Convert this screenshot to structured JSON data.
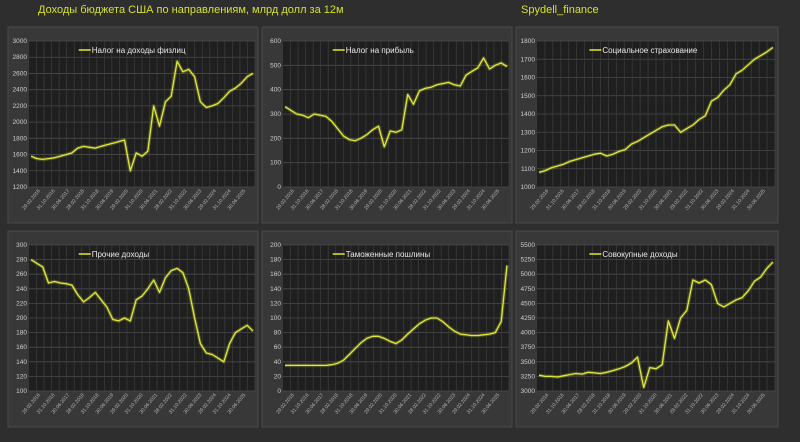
{
  "header": {
    "title": "Доходы бюджета США по направлениям, млрд долл за 12м",
    "source": "Spydell_finance"
  },
  "colors": {
    "line": "#dfe83a",
    "title": "#d6e033",
    "background": "#2e2e2e",
    "plot_background": "#1f1f1f"
  },
  "chart_data": [
    {
      "type": "line",
      "legend": "Налог на доходы физлиц",
      "ylim": [
        1200,
        3000
      ],
      "yticks": [
        1200,
        1400,
        1600,
        1800,
        2000,
        2200,
        2400,
        2600,
        2800,
        3000
      ],
      "grid": true,
      "legend_position": "top-center",
      "xticks": [
        "29.02.2016",
        "31.10.2016",
        "30.06.2017",
        "28.02.2018",
        "31.10.2018",
        "30.06.2019",
        "29.02.2020",
        "31.10.2020",
        "30.06.2021",
        "28.02.2022",
        "31.10.2022",
        "30.06.2023",
        "29.02.2024",
        "31.10.2024",
        "30.06.2025"
      ],
      "x_range": [
        "2016-01",
        "2025-07"
      ],
      "values": [
        1580,
        1550,
        1540,
        1550,
        1560,
        1580,
        1600,
        1620,
        1680,
        1700,
        1690,
        1680,
        1700,
        1720,
        1740,
        1760,
        1780,
        1400,
        1620,
        1580,
        1640,
        2200,
        1950,
        2250,
        2320,
        2750,
        2620,
        2650,
        2560,
        2250,
        2180,
        2200,
        2230,
        2300,
        2380,
        2420,
        2480,
        2560,
        2600
      ]
    },
    {
      "type": "line",
      "legend": "Налог на прибыль",
      "ylim": [
        0,
        600
      ],
      "yticks": [
        0,
        100,
        200,
        300,
        400,
        500,
        600
      ],
      "grid": true,
      "legend_position": "top-center",
      "xticks": [
        "29.02.2016",
        "31.10.2016",
        "30.06.2017",
        "28.02.2018",
        "31.10.2018",
        "30.06.2019",
        "29.02.2020",
        "31.10.2020",
        "30.06.2021",
        "28.02.2022",
        "31.10.2022",
        "30.06.2023",
        "29.02.2024",
        "31.10.2024",
        "30.06.2025"
      ],
      "x_range": [
        "2016-01",
        "2025-07"
      ],
      "values": [
        330,
        315,
        300,
        295,
        285,
        300,
        295,
        290,
        270,
        240,
        210,
        195,
        190,
        200,
        215,
        235,
        250,
        165,
        230,
        225,
        235,
        380,
        340,
        395,
        405,
        410,
        420,
        425,
        430,
        420,
        415,
        460,
        475,
        490,
        530,
        485,
        500,
        510,
        495
      ]
    },
    {
      "type": "line",
      "legend": "Социальное страхование",
      "ylim": [
        1000,
        1800
      ],
      "yticks": [
        1000,
        1100,
        1200,
        1300,
        1400,
        1500,
        1600,
        1700,
        1800
      ],
      "grid": true,
      "legend_position": "top-center",
      "xticks": [
        "29.02.2016",
        "31.10.2016",
        "30.06.2017",
        "28.02.2018",
        "31.10.2018",
        "30.06.2019",
        "29.02.2020",
        "31.10.2020",
        "30.06.2021",
        "28.02.2022",
        "31.10.2022",
        "30.06.2023",
        "29.02.2024",
        "31.10.2024",
        "30.06.2025"
      ],
      "x_range": [
        "2016-01",
        "2025-07"
      ],
      "values": [
        1080,
        1090,
        1105,
        1115,
        1125,
        1140,
        1150,
        1160,
        1170,
        1180,
        1185,
        1170,
        1180,
        1195,
        1205,
        1235,
        1250,
        1270,
        1290,
        1310,
        1330,
        1340,
        1340,
        1300,
        1320,
        1340,
        1370,
        1390,
        1470,
        1490,
        1530,
        1560,
        1620,
        1640,
        1670,
        1700,
        1720,
        1740,
        1765
      ]
    },
    {
      "type": "line",
      "legend": "Прочие доходы",
      "ylim": [
        100,
        300
      ],
      "yticks": [
        100,
        120,
        140,
        160,
        180,
        200,
        220,
        240,
        260,
        280,
        300
      ],
      "grid": true,
      "legend_position": "top-center",
      "xticks": [
        "29.02.2016",
        "31.10.2016",
        "30.06.2017",
        "28.02.2018",
        "31.10.2018",
        "30.06.2019",
        "29.02.2020",
        "31.10.2020",
        "30.06.2021",
        "28.02.2022",
        "31.10.2022",
        "30.06.2023",
        "29.02.2024",
        "31.10.2024",
        "30.06.2025"
      ],
      "x_range": [
        "2016-01",
        "2025-07"
      ],
      "values": [
        280,
        275,
        270,
        248,
        250,
        248,
        247,
        245,
        232,
        222,
        228,
        235,
        225,
        215,
        198,
        196,
        200,
        196,
        225,
        230,
        240,
        252,
        235,
        255,
        265,
        268,
        262,
        240,
        200,
        165,
        152,
        150,
        145,
        140,
        165,
        180,
        185,
        190,
        182
      ]
    },
    {
      "type": "line",
      "legend": "Таможенные пошлины",
      "ylim": [
        0,
        200
      ],
      "yticks": [
        0,
        20,
        40,
        60,
        80,
        100,
        120,
        140,
        160,
        180,
        200
      ],
      "grid": true,
      "legend_position": "top-center",
      "xticks": [
        "29.02.2016",
        "31.10.2016",
        "30.06.2017",
        "28.02.2018",
        "31.10.2018",
        "30.06.2019",
        "29.02.2020",
        "31.10.2020",
        "30.06.2021",
        "28.02.2022",
        "31.10.2022",
        "30.06.2023",
        "29.02.2024",
        "31.10.2024",
        "30.06.2025"
      ],
      "x_range": [
        "2016-01",
        "2025-07"
      ],
      "values": [
        35,
        35,
        35,
        35,
        35,
        35,
        35,
        35,
        36,
        38,
        42,
        50,
        58,
        66,
        72,
        75,
        75,
        72,
        68,
        65,
        70,
        78,
        85,
        92,
        97,
        100,
        100,
        95,
        88,
        82,
        78,
        77,
        76,
        76,
        77,
        78,
        80,
        95,
        172
      ]
    },
    {
      "type": "line",
      "legend": "Совокупные доходы",
      "ylim": [
        3000,
        5500
      ],
      "yticks": [
        3000,
        3250,
        3500,
        3750,
        4000,
        4250,
        4500,
        4750,
        5000,
        5250,
        5500
      ],
      "grid": true,
      "legend_position": "top-center",
      "xticks": [
        "29.02.2016",
        "31.10.2016",
        "30.06.2017",
        "28.02.2018",
        "31.10.2018",
        "30.06.2019",
        "29.02.2020",
        "31.10.2020",
        "30.06.2021",
        "28.02.2022",
        "31.10.2022",
        "30.06.2023",
        "29.02.2024",
        "31.10.2024",
        "30.06.2025"
      ],
      "x_range": [
        "2016-01",
        "2025-07"
      ],
      "values": [
        3270,
        3250,
        3250,
        3240,
        3260,
        3280,
        3300,
        3290,
        3320,
        3310,
        3300,
        3320,
        3350,
        3380,
        3420,
        3480,
        3580,
        3060,
        3400,
        3380,
        3450,
        4200,
        3900,
        4250,
        4380,
        4900,
        4850,
        4900,
        4820,
        4500,
        4440,
        4500,
        4560,
        4600,
        4720,
        4880,
        4950,
        5100,
        5210
      ]
    }
  ]
}
